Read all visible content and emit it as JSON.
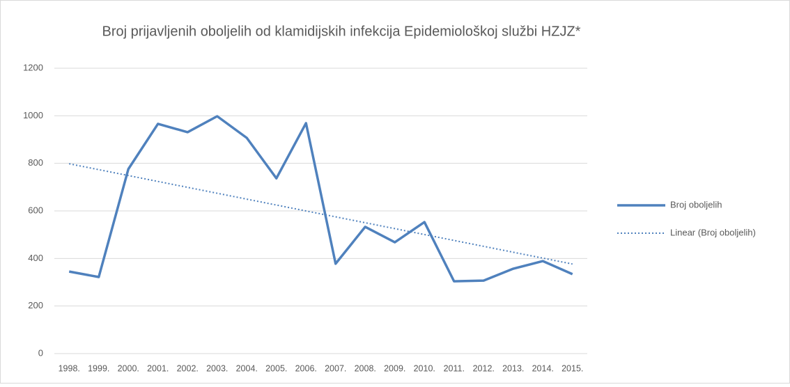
{
  "chart_data": {
    "type": "line",
    "title": "Broj prijavljenih oboljelih od klamidijskih infekcija Epidemiološkoj službi HZJZ*",
    "categories": [
      "1998.",
      "1999.",
      "2000.",
      "2001.",
      "2002.",
      "2003.",
      "2004.",
      "2005.",
      "2006.",
      "2007.",
      "2008.",
      "2009.",
      "2010.",
      "2011.",
      "2012.",
      "2013.",
      "2014.",
      "2015."
    ],
    "series": [
      {
        "name": "Broj oboljelih",
        "color": "#4f81bd",
        "values": [
          345,
          322,
          776,
          966,
          931,
          998,
          907,
          737,
          969,
          378,
          533,
          468,
          553,
          304,
          307,
          357,
          389,
          334
        ]
      }
    ],
    "trendline": {
      "name": "Linear (Broj oboljelih)",
      "kind": "linear",
      "color": "#4f81bd"
    },
    "ylim": [
      0,
      1200
    ],
    "yticks": [
      0,
      200,
      400,
      600,
      800,
      1000,
      1200
    ],
    "grid": true,
    "legend": "right"
  }
}
